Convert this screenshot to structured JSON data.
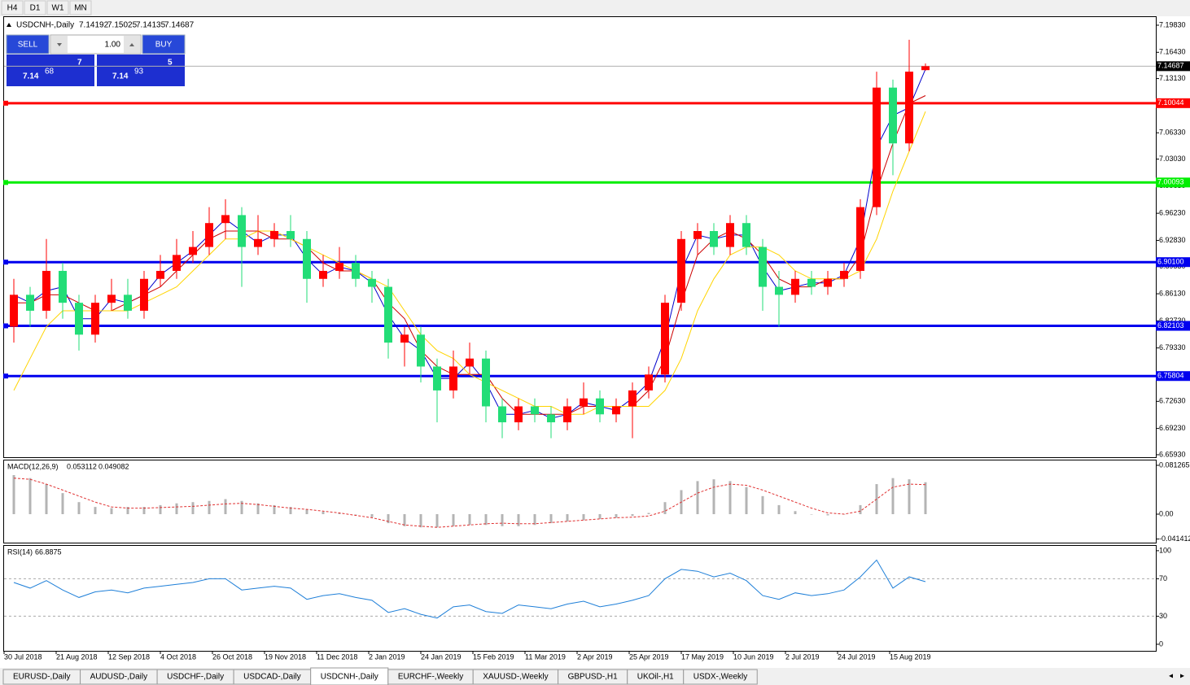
{
  "timeframes": [
    "H4",
    "D1",
    "W1",
    "MN"
  ],
  "tabs": [
    "EURUSD-,Daily",
    "AUDUSD-,Daily",
    "USDCHF-,Daily",
    "USDCAD-,Daily",
    "USDCNH-,Daily",
    "EURCHF-,Weekly",
    "XAUUSD-,Weekly",
    "GBPUSD-,H1",
    "UKOil-,H1",
    "USDX-,Weekly"
  ],
  "active_tab": 4,
  "trade": {
    "sell": "SELL",
    "buy": "BUY",
    "lots": "1.00",
    "bid": {
      "big": "7.14",
      "pips": "68",
      "point": "7"
    },
    "ask": {
      "big": "7.14",
      "pips": "93",
      "point": "5"
    }
  },
  "chart_data": [
    {
      "type": "candlestick",
      "title": "USDCNH-,Daily",
      "quote": [
        7.14192,
        7.15025,
        7.14135,
        7.14687
      ],
      "last": 7.14687,
      "x": [
        3,
        8,
        13,
        18,
        23,
        28,
        33,
        38,
        43,
        48,
        53,
        58,
        63,
        68,
        73,
        78,
        83,
        88,
        93,
        98,
        103,
        108,
        113,
        118,
        123,
        128,
        133,
        138,
        143,
        148,
        153,
        158,
        163,
        168,
        173,
        178,
        183,
        188,
        193,
        198,
        203,
        208,
        213,
        218,
        223,
        228,
        233,
        238,
        243,
        248,
        253,
        258,
        263,
        268,
        273,
        278,
        283
      ],
      "open": [
        6.82,
        6.86,
        6.84,
        6.89,
        6.85,
        6.81,
        6.85,
        6.86,
        6.84,
        6.88,
        6.89,
        6.91,
        6.92,
        6.95,
        6.96,
        6.92,
        6.93,
        6.94,
        6.93,
        6.88,
        6.89,
        6.9,
        6.88,
        6.87,
        6.8,
        6.81,
        6.77,
        6.74,
        6.77,
        6.78,
        6.72,
        6.7,
        6.72,
        6.71,
        6.7,
        6.72,
        6.73,
        6.71,
        6.72,
        6.74,
        6.76,
        6.85,
        6.93,
        6.94,
        6.92,
        6.95,
        6.92,
        6.87,
        6.86,
        6.88,
        6.87,
        6.88,
        6.89,
        6.97,
        7.12,
        7.05,
        7.14192
      ],
      "high": [
        6.88,
        6.87,
        6.93,
        6.9,
        6.86,
        6.86,
        6.88,
        6.88,
        6.89,
        6.91,
        6.93,
        6.94,
        6.97,
        6.98,
        6.97,
        6.96,
        6.95,
        6.96,
        6.94,
        6.91,
        6.92,
        6.91,
        6.89,
        6.88,
        6.82,
        6.82,
        6.78,
        6.79,
        6.8,
        6.79,
        6.73,
        6.73,
        6.73,
        6.72,
        6.73,
        6.75,
        6.74,
        6.73,
        6.75,
        6.77,
        6.86,
        6.94,
        6.95,
        6.95,
        6.96,
        6.96,
        6.93,
        6.89,
        6.89,
        6.89,
        6.89,
        6.9,
        6.98,
        7.14,
        7.13,
        7.18,
        7.15025
      ],
      "low": [
        6.8,
        6.82,
        6.83,
        6.83,
        6.79,
        6.8,
        6.84,
        6.83,
        6.83,
        6.87,
        6.88,
        6.9,
        6.91,
        6.93,
        6.87,
        6.91,
        6.92,
        6.92,
        6.85,
        6.87,
        6.88,
        6.87,
        6.85,
        6.78,
        6.77,
        6.75,
        6.7,
        6.73,
        6.76,
        6.7,
        6.68,
        6.69,
        6.7,
        6.68,
        6.69,
        6.71,
        6.7,
        6.7,
        6.68,
        6.73,
        6.75,
        6.84,
        6.91,
        6.91,
        6.91,
        6.91,
        6.84,
        6.82,
        6.85,
        6.86,
        6.86,
        6.87,
        6.88,
        6.96,
        7.01,
        7.04,
        7.14135
      ],
      "close": [
        6.86,
        6.84,
        6.89,
        6.85,
        6.81,
        6.85,
        6.86,
        6.84,
        6.88,
        6.89,
        6.91,
        6.92,
        6.95,
        6.96,
        6.92,
        6.93,
        6.94,
        6.93,
        6.88,
        6.89,
        6.9,
        6.88,
        6.87,
        6.8,
        6.81,
        6.77,
        6.74,
        6.77,
        6.78,
        6.72,
        6.7,
        6.72,
        6.71,
        6.7,
        6.72,
        6.73,
        6.71,
        6.72,
        6.74,
        6.76,
        6.85,
        6.93,
        6.94,
        6.92,
        6.95,
        6.92,
        6.87,
        6.86,
        6.88,
        6.87,
        6.88,
        6.89,
        6.97,
        7.12,
        7.05,
        7.14,
        7.14687
      ],
      "up_color": "#ff0000",
      "down_color": "#22dd77",
      "lines": [
        {
          "color": "#0000cc",
          "values": [
            6.86,
            6.85,
            6.865,
            6.87,
            6.83,
            6.83,
            6.855,
            6.85,
            6.86,
            6.885,
            6.9,
            6.915,
            6.935,
            6.955,
            6.94,
            6.925,
            6.935,
            6.935,
            6.905,
            6.885,
            6.895,
            6.89,
            6.875,
            6.835,
            6.805,
            6.79,
            6.755,
            6.755,
            6.775,
            6.75,
            6.71,
            6.71,
            6.715,
            6.705,
            6.71,
            6.725,
            6.72,
            6.715,
            6.73,
            6.75,
            6.805,
            6.89,
            6.935,
            6.93,
            6.935,
            6.935,
            6.895,
            6.865,
            6.87,
            6.875,
            6.875,
            6.885,
            6.93,
            7.045,
            7.085,
            7.095,
            7.143
          ]
        },
        {
          "color": "#cc0000",
          "values": [
            6.85,
            6.85,
            6.86,
            6.86,
            6.85,
            6.84,
            6.84,
            6.85,
            6.86,
            6.87,
            6.89,
            6.91,
            6.93,
            6.94,
            6.94,
            6.94,
            6.93,
            6.93,
            6.92,
            6.9,
            6.89,
            6.89,
            6.88,
            6.85,
            6.83,
            6.79,
            6.77,
            6.76,
            6.76,
            6.76,
            6.73,
            6.71,
            6.71,
            6.71,
            6.71,
            6.72,
            6.72,
            6.72,
            6.72,
            6.74,
            6.78,
            6.85,
            6.91,
            6.93,
            6.94,
            6.93,
            6.91,
            6.88,
            6.87,
            6.87,
            6.88,
            6.88,
            6.91,
            6.99,
            7.05,
            7.1,
            7.11
          ]
        },
        {
          "color": "#ffd400",
          "values": [
            6.74,
            6.78,
            6.82,
            6.84,
            6.84,
            6.84,
            6.84,
            6.84,
            6.85,
            6.86,
            6.87,
            6.89,
            6.91,
            6.93,
            6.93,
            6.94,
            6.94,
            6.93,
            6.92,
            6.91,
            6.9,
            6.89,
            6.88,
            6.87,
            6.84,
            6.81,
            6.79,
            6.78,
            6.76,
            6.75,
            6.74,
            6.73,
            6.72,
            6.72,
            6.71,
            6.71,
            6.72,
            6.72,
            6.72,
            6.72,
            6.74,
            6.78,
            6.84,
            6.88,
            6.91,
            6.92,
            6.92,
            6.91,
            6.89,
            6.88,
            6.88,
            6.88,
            6.89,
            6.93,
            6.99,
            7.04,
            7.09
          ]
        }
      ],
      "levels": [
        {
          "value": 7.10044,
          "label": "7.10044",
          "color": "#ff0000"
        },
        {
          "value": 7.00093,
          "label": "7.00093",
          "color": "#00ee00"
        },
        {
          "value": 6.901,
          "label": "6.90100",
          "color": "#0000ee"
        },
        {
          "value": 6.82103,
          "label": "6.82103",
          "color": "#0000ee"
        },
        {
          "value": 6.75804,
          "label": "6.75804",
          "color": "#0000ee"
        }
      ],
      "xlim": [
        0,
        353.75
      ],
      "xticks": [
        {
          "value": 0,
          "label": "30 Jul 2018"
        },
        {
          "value": 16,
          "label": "21 Aug 2018"
        },
        {
          "value": 32,
          "label": "12 Sep 2018"
        },
        {
          "value": 48,
          "label": "4 Oct 2018"
        },
        {
          "value": 64,
          "label": "26 Oct 2018"
        },
        {
          "value": 80,
          "label": "19 Nov 2018"
        },
        {
          "value": 96,
          "label": "11 Dec 2018"
        },
        {
          "value": 112,
          "label": "2 Jan 2019"
        },
        {
          "value": 128,
          "label": "24 Jan 2019"
        },
        {
          "value": 144,
          "label": "15 Feb 2019"
        },
        {
          "value": 160,
          "label": "11 Mar 2019"
        },
        {
          "value": 176,
          "label": "2 Apr 2019"
        },
        {
          "value": 192,
          "label": "25 Apr 2019"
        },
        {
          "value": 208,
          "label": "17 May 2019"
        },
        {
          "value": 224,
          "label": "10 Jun 2019"
        },
        {
          "value": 240,
          "label": "2 Jul 2019"
        },
        {
          "value": 256,
          "label": "24 Jul 2019"
        },
        {
          "value": 272,
          "label": "15 Aug 2019"
        }
      ],
      "ylim": [
        6.6562,
        7.2095
      ],
      "yticks": [
        {
          "value": 7.1983,
          "label": "7.19830"
        },
        {
          "value": 7.1643,
          "label": "7.16430"
        },
        {
          "value": 7.1313,
          "label": "7.13130"
        },
        {
          "value": 7.0973,
          "label": "7.09730"
        },
        {
          "value": 7.0633,
          "label": "7.06330"
        },
        {
          "value": 7.0303,
          "label": "7.03030"
        },
        {
          "value": 6.9963,
          "label": "6.99630"
        },
        {
          "value": 6.9623,
          "label": "6.96230"
        },
        {
          "value": 6.9283,
          "label": "6.92830"
        },
        {
          "value": 6.8953,
          "label": "6.89530"
        },
        {
          "value": 6.8613,
          "label": "6.86130"
        },
        {
          "value": 6.8273,
          "label": "6.82730"
        },
        {
          "value": 6.7933,
          "label": "6.79330"
        },
        {
          "value": 6.7593,
          "label": "6.75930"
        },
        {
          "value": 6.7263,
          "label": "6.72630"
        },
        {
          "value": 6.6923,
          "label": "6.69230"
        },
        {
          "value": 6.6593,
          "label": "6.65930"
        }
      ]
    },
    {
      "type": "macd",
      "title": "MACD(12,26,9)",
      "readings": [
        0.053112,
        0.049082
      ],
      "hist_color": "#b4b4b4",
      "signal_color": "#e03030",
      "values": [
        0.065,
        0.06,
        0.05,
        0.035,
        0.02,
        0.012,
        0.01,
        0.012,
        0.012,
        0.015,
        0.018,
        0.02,
        0.022,
        0.025,
        0.022,
        0.018,
        0.015,
        0.012,
        0.008,
        0.004,
        0.002,
        0,
        -0.005,
        -0.015,
        -0.02,
        -0.022,
        -0.022,
        -0.02,
        -0.018,
        -0.018,
        -0.02,
        -0.02,
        -0.018,
        -0.015,
        -0.012,
        -0.01,
        -0.008,
        -0.006,
        -0.003,
        0.002,
        0.02,
        0.04,
        0.055,
        0.058,
        0.055,
        0.045,
        0.03,
        0.015,
        0.005,
        0,
        -0.002,
        0,
        0.015,
        0.05,
        0.06,
        0.058,
        0.053112
      ],
      "signal": [
        0.06,
        0.058,
        0.05,
        0.04,
        0.03,
        0.02,
        0.012,
        0.01,
        0.01,
        0.011,
        0.012,
        0.013,
        0.015,
        0.017,
        0.018,
        0.016,
        0.013,
        0.01,
        0.008,
        0.005,
        0.002,
        -0.002,
        -0.006,
        -0.012,
        -0.018,
        -0.02,
        -0.022,
        -0.02,
        -0.018,
        -0.016,
        -0.015,
        -0.016,
        -0.016,
        -0.014,
        -0.012,
        -0.01,
        -0.008,
        -0.006,
        -0.005,
        -0.003,
        0.005,
        0.02,
        0.035,
        0.045,
        0.05,
        0.048,
        0.04,
        0.03,
        0.02,
        0.01,
        0.002,
        0,
        0.005,
        0.025,
        0.045,
        0.05,
        0.049082
      ],
      "ylim": [
        -0.0474,
        0.0907
      ],
      "yticks": [
        0.081265,
        {
          "value": 0,
          "label": "0.00"
        },
        -0.041412
      ]
    },
    {
      "type": "line",
      "title": "RSI(14)",
      "readings": [
        66.8875
      ],
      "color": "#1e7fd8",
      "values": [
        66,
        60,
        68,
        58,
        50,
        56,
        58,
        55,
        60,
        62,
        64,
        66,
        70,
        70,
        58,
        60,
        62,
        60,
        48,
        52,
        54,
        50,
        47,
        34,
        38,
        32,
        28,
        40,
        42,
        35,
        33,
        42,
        40,
        38,
        43,
        46,
        40,
        43,
        47,
        52,
        70,
        80,
        78,
        72,
        76,
        68,
        52,
        48,
        55,
        52,
        54,
        58,
        72,
        90,
        60,
        72,
        66.8875
      ],
      "levels": [
        30,
        70
      ],
      "ylim": [
        -7,
        106
      ],
      "yticks": [
        0,
        30,
        70,
        100
      ]
    }
  ]
}
